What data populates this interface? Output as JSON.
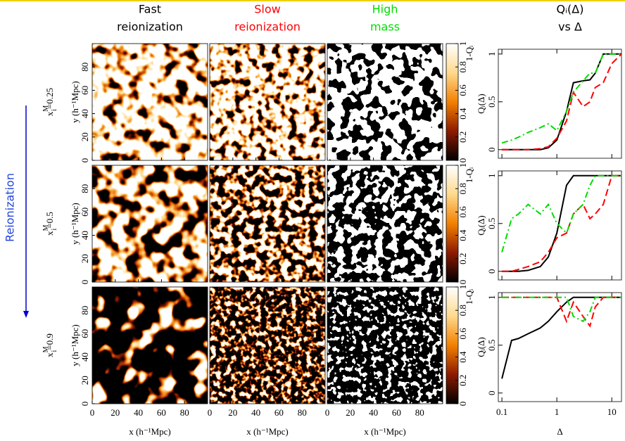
{
  "columns": [
    {
      "title": [
        "Fast",
        "reionization"
      ],
      "color": "#000000"
    },
    {
      "title": [
        "Slow",
        "reionization"
      ],
      "color": "#ff0000"
    },
    {
      "title": [
        "High",
        "mass"
      ],
      "color": "#00dd00"
    },
    {
      "title": [
        "Qᵢ(Δ)",
        "vs Δ"
      ],
      "color": "#000000"
    }
  ],
  "side_label": "Reionization",
  "rows": [
    {
      "label": {
        "base": "x",
        "sup": "M",
        "sub": "i",
        "value": "=0.25"
      }
    },
    {
      "label": {
        "base": "x",
        "sup": "M",
        "sub": "i",
        "value": "=0.5"
      }
    },
    {
      "label": {
        "base": "x",
        "sup": "M",
        "sub": "i",
        "value": "=0.9"
      }
    }
  ],
  "maps": {
    "xlabel": "x (h⁻¹Mpc)",
    "ylabel": "y (h⁻¹Mpc)",
    "xlim": [
      0,
      100
    ],
    "ylim": [
      0,
      100
    ],
    "xticks": [
      0,
      20,
      40,
      60,
      80
    ],
    "yticks": [
      0,
      20,
      40,
      60,
      80
    ]
  },
  "colorbar": {
    "label": "1-Qᵢ",
    "lim": [
      0,
      1
    ],
    "ticks": [
      0,
      0.2,
      0.4,
      0.6,
      0.8,
      1
    ]
  },
  "chart_data": [
    {
      "type": "line",
      "log_x": true,
      "ylabel": "Qᵢ(Δ)",
      "x": [
        0.1,
        0.15,
        0.2,
        0.3,
        0.5,
        0.7,
        1,
        1.5,
        2,
        3,
        4,
        5,
        7,
        10,
        15
      ],
      "xlim": [
        0.086,
        15
      ],
      "xticks": [
        0.1,
        1,
        10
      ],
      "ylim": [
        -0.09,
        1.05
      ],
      "yticks": [
        0,
        0.5,
        1
      ],
      "series": [
        {
          "color": "#000000",
          "linestyle": "solid",
          "values": [
            0,
            0,
            0,
            0,
            0,
            0.02,
            0.1,
            0.4,
            0.7,
            0.72,
            0.73,
            0.8,
            1,
            1,
            1
          ]
        },
        {
          "color": "#ff0000",
          "linestyle": "dashed",
          "values": [
            0,
            0,
            0,
            0,
            0.01,
            0.03,
            0.12,
            0.3,
            0.6,
            0.45,
            0.5,
            0.65,
            0.7,
            0.9,
            1
          ]
        },
        {
          "color": "#00dd00",
          "linestyle": "dashdot",
          "values": [
            0.07,
            0.1,
            0.13,
            0.18,
            0.23,
            0.27,
            0.2,
            0.4,
            0.6,
            0.72,
            0.8,
            0.8,
            1,
            1,
            1
          ]
        }
      ]
    },
    {
      "type": "line",
      "log_x": true,
      "ylabel": "Qᵢ(Δ)",
      "x": [
        0.1,
        0.15,
        0.2,
        0.3,
        0.5,
        0.7,
        1,
        1.5,
        2,
        3,
        4,
        5,
        7,
        10,
        15
      ],
      "xlim": [
        0.086,
        15
      ],
      "xticks": [
        0.1,
        1,
        10
      ],
      "ylim": [
        -0.09,
        1.05
      ],
      "yticks": [
        0,
        0.5,
        1
      ],
      "series": [
        {
          "color": "#000000",
          "linestyle": "solid",
          "values": [
            0,
            0,
            0,
            0.01,
            0.05,
            0.15,
            0.4,
            0.9,
            1,
            1,
            1,
            1,
            1,
            1,
            1
          ]
        },
        {
          "color": "#ff0000",
          "linestyle": "dashed",
          "values": [
            0,
            0,
            0.02,
            0.05,
            0.1,
            0.2,
            0.35,
            0.4,
            0.6,
            0.7,
            0.55,
            0.6,
            0.7,
            1,
            1
          ]
        },
        {
          "color": "#00dd00",
          "linestyle": "dashdot",
          "values": [
            0.2,
            0.55,
            0.6,
            0.7,
            0.6,
            0.7,
            0.5,
            0.4,
            0.6,
            0.7,
            0.9,
            1,
            1,
            1,
            1
          ]
        }
      ]
    },
    {
      "type": "line",
      "log_x": true,
      "ylabel": "Qᵢ(Δ)",
      "xlabel": "Δ",
      "x": [
        0.1,
        0.15,
        0.2,
        0.3,
        0.5,
        0.7,
        1,
        1.5,
        2,
        3,
        4,
        5,
        7,
        10,
        15
      ],
      "xlim": [
        0.086,
        15
      ],
      "xticks": [
        0.1,
        1,
        10
      ],
      "ylim": [
        -0.09,
        1.05
      ],
      "yticks": [
        0,
        0.5,
        1
      ],
      "series": [
        {
          "color": "#000000",
          "linestyle": "solid",
          "values": [
            0.15,
            0.55,
            0.57,
            0.62,
            0.68,
            0.75,
            0.85,
            0.95,
            1,
            1,
            1,
            1,
            1,
            1,
            1
          ]
        },
        {
          "color": "#ff0000",
          "linestyle": "dashed",
          "values": [
            1,
            1,
            1,
            1,
            1,
            1,
            1,
            0.75,
            0.95,
            0.8,
            0.7,
            0.9,
            1,
            1,
            1
          ]
        },
        {
          "color": "#00dd00",
          "linestyle": "dashdot",
          "values": [
            1,
            1,
            1,
            1,
            1,
            1,
            1,
            1,
            0.8,
            0.75,
            0.85,
            1,
            1,
            1,
            1
          ]
        }
      ]
    }
  ]
}
